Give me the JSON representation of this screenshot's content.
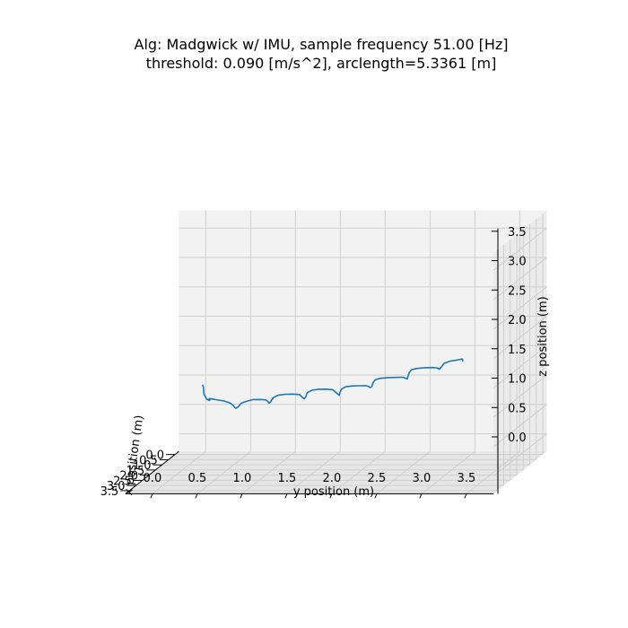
{
  "chart_data": {
    "type": "line",
    "projection": "3d",
    "title": "Alg: Madgwick w/ IMU, sample frequency 51.00 [Hz]",
    "subtitle": "threshold: 0.090 [m/s^2], arclength=5.3361 [m]",
    "xlabel": "x position (m)",
    "ylabel": "y position (m)",
    "zlabel": "z position (m)",
    "x_ticks": [
      "0.0",
      "0.5",
      "1.0",
      "1.5",
      "2.0",
      "2.5",
      "3.0",
      "3.5"
    ],
    "y_ticks": [
      "0.0",
      "0.5",
      "1.0",
      "1.5",
      "2.0",
      "2.5",
      "3.0",
      "3.5"
    ],
    "z_ticks": [
      "0.0",
      "0.5",
      "1.0",
      "1.5",
      "2.0",
      "2.5",
      "3.0",
      "3.5"
    ],
    "xlim": [
      -0.3,
      3.8
    ],
    "ylim": [
      -0.3,
      3.8
    ],
    "zlim": [
      -0.3,
      3.8
    ],
    "grid": true,
    "series_color": "#1f77b4",
    "series": [
      {
        "x": [
          0.01,
          0.02,
          0.04,
          0.08,
          0.06,
          0.05,
          0.07,
          0.1,
          0.15,
          0.22,
          0.3,
          0.36,
          0.4,
          0.42,
          0.44,
          0.47,
          0.52,
          0.6,
          0.7,
          0.8,
          0.85,
          0.88,
          0.9,
          0.93,
          0.98,
          1.05,
          1.15,
          1.25,
          1.3,
          1.32,
          1.33,
          1.35,
          1.4,
          1.48,
          1.58,
          1.68,
          1.75,
          1.78,
          1.8,
          1.82,
          1.87,
          1.95,
          2.05,
          2.15,
          2.22,
          2.25,
          2.27,
          2.3,
          2.35,
          2.45,
          2.55,
          2.65,
          2.7,
          2.72,
          2.74,
          2.77,
          2.83,
          2.92,
          3.02,
          3.1,
          3.12,
          3.14,
          3.18,
          3.25,
          3.32,
          3.36,
          3.38,
          3.39,
          3.4
        ],
        "y": [
          0.01,
          0.02,
          0.03,
          0.07,
          0.1,
          0.09,
          0.08,
          0.1,
          0.18,
          0.28,
          0.36,
          0.4,
          0.42,
          0.44,
          0.47,
          0.51,
          0.58,
          0.66,
          0.75,
          0.83,
          0.86,
          0.88,
          0.9,
          0.93,
          0.99,
          1.08,
          1.18,
          1.27,
          1.31,
          1.33,
          1.35,
          1.37,
          1.43,
          1.51,
          1.61,
          1.7,
          1.76,
          1.79,
          1.8,
          1.82,
          1.87,
          1.96,
          2.06,
          2.15,
          2.2,
          2.22,
          2.24,
          2.27,
          2.33,
          2.43,
          2.53,
          2.63,
          2.68,
          2.69,
          2.71,
          2.74,
          2.8,
          2.9,
          3.0,
          3.07,
          3.1,
          3.12,
          3.16,
          3.24,
          3.32,
          3.37,
          3.39,
          3.4,
          3.4
        ],
        "z": [
          0.89,
          0.85,
          0.73,
          0.65,
          0.64,
          0.63,
          0.64,
          0.67,
          0.66,
          0.65,
          0.63,
          0.6,
          0.58,
          0.56,
          0.59,
          0.66,
          0.7,
          0.74,
          0.76,
          0.77,
          0.75,
          0.73,
          0.76,
          0.83,
          0.88,
          0.91,
          0.93,
          0.94,
          0.9,
          0.88,
          0.91,
          0.99,
          1.04,
          1.07,
          1.09,
          1.1,
          1.05,
          1.02,
          1.07,
          1.13,
          1.18,
          1.21,
          1.23,
          1.25,
          1.23,
          1.25,
          1.33,
          1.38,
          1.41,
          1.44,
          1.46,
          1.48,
          1.46,
          1.5,
          1.58,
          1.63,
          1.66,
          1.69,
          1.71,
          1.72,
          1.7,
          1.73,
          1.81,
          1.86,
          1.89,
          1.91,
          1.92,
          1.91,
          1.88
        ]
      }
    ]
  }
}
